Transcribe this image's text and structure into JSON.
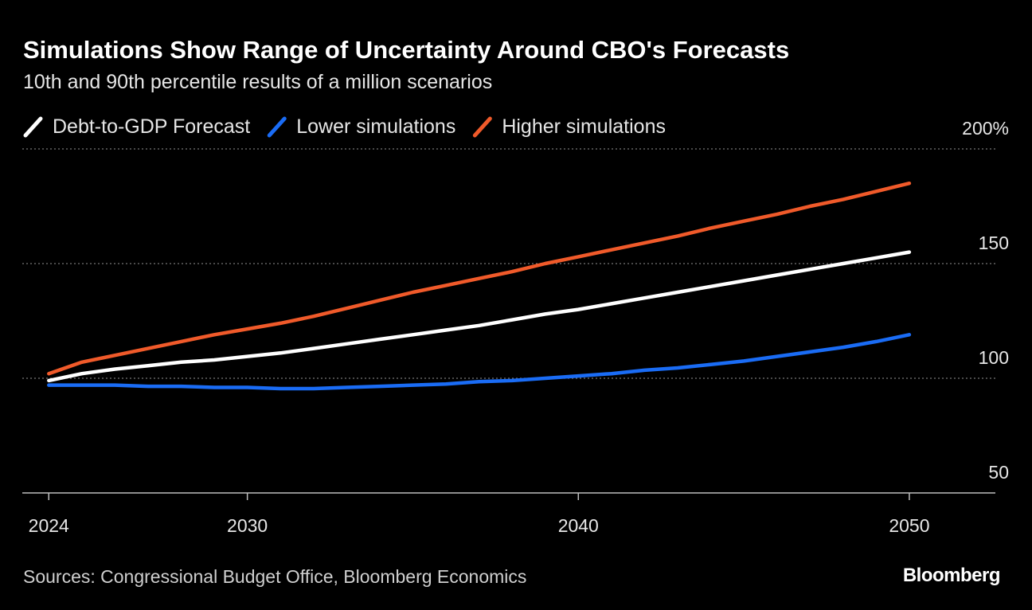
{
  "chart_data": {
    "type": "line",
    "title": "Simulations Show Range of Uncertainty Around CBO's Forecasts",
    "subtitle": "10th and 90th percentile results of a million scenarios",
    "source": "Sources: Congressional Budget Office, Bloomberg Economics",
    "brand": "Bloomberg",
    "x": [
      2024,
      2025,
      2026,
      2027,
      2028,
      2029,
      2030,
      2031,
      2032,
      2033,
      2034,
      2035,
      2036,
      2037,
      2038,
      2039,
      2040,
      2041,
      2042,
      2043,
      2044,
      2045,
      2046,
      2047,
      2048,
      2049,
      2050
    ],
    "series": [
      {
        "name": "Debt-to-GDP Forecast",
        "color": "#ffffff",
        "values": [
          99,
          102,
          104,
          105.5,
          107,
          108,
          109.5,
          111,
          113,
          115,
          117,
          119,
          121,
          123,
          125.5,
          128,
          130,
          132.5,
          135,
          137.5,
          140,
          142.5,
          145,
          147.5,
          150,
          152.5,
          155
        ]
      },
      {
        "name": "Lower simulations",
        "color": "#1a6cf5",
        "values": [
          97,
          97,
          97,
          96.5,
          96.5,
          96,
          96,
          95.5,
          95.5,
          96,
          96.5,
          97,
          97.5,
          98.5,
          99,
          100,
          101,
          102,
          103.5,
          104.5,
          106,
          107.5,
          109.5,
          111.5,
          113.5,
          116,
          119
        ]
      },
      {
        "name": "Higher simulations",
        "color": "#f05a2a",
        "values": [
          102,
          107,
          110,
          113,
          116,
          119,
          121.5,
          124,
          127,
          130.5,
          134,
          137.5,
          140.5,
          143.5,
          146.5,
          150,
          153,
          156,
          159,
          162,
          165.5,
          168.5,
          171.5,
          175,
          178,
          181.5,
          185
        ]
      }
    ],
    "xlim": [
      2023.2,
      2052.6
    ],
    "xticks": [
      2024,
      2030,
      2040,
      2050
    ],
    "ylim": [
      50,
      200
    ],
    "yticks": [
      50,
      100,
      150,
      {
        "value": 200,
        "label": "200%"
      }
    ],
    "grid": true
  }
}
